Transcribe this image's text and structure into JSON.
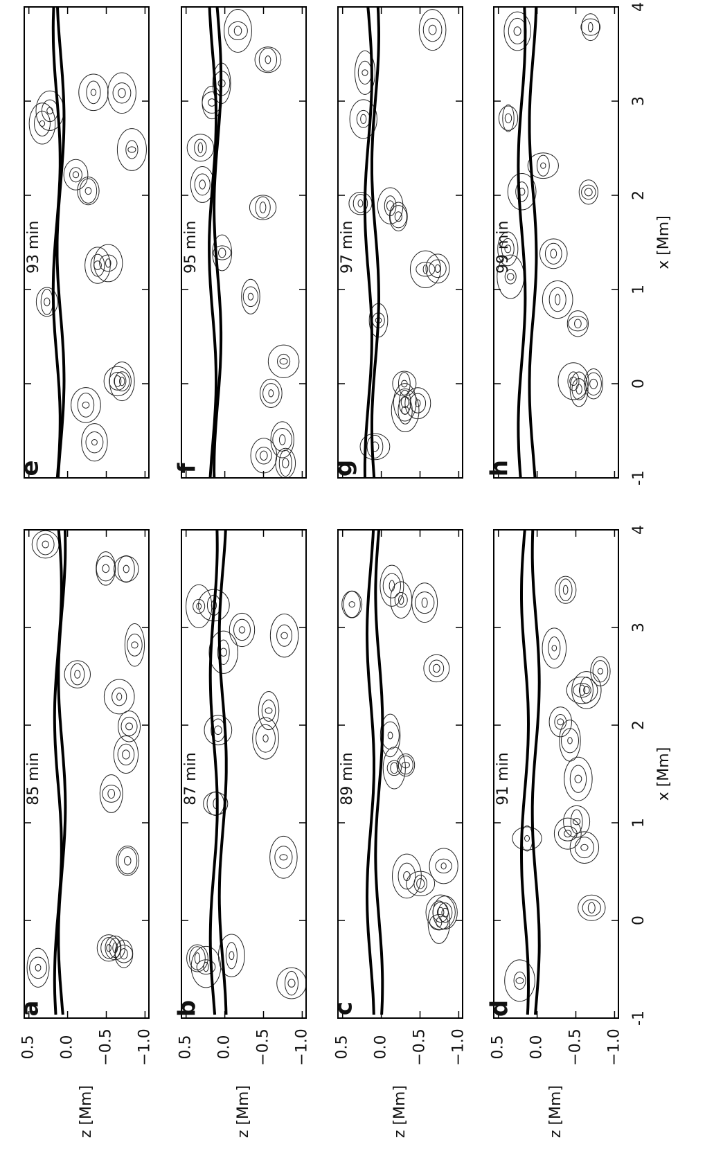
{
  "chart_data": [
    {
      "type": "contour",
      "panel": "a",
      "time": "85 min",
      "ylabel": "z [Mm]",
      "xlim": [
        -1,
        4
      ],
      "ylim": [
        -1.05,
        0.56
      ],
      "xticks": [
        -1,
        0,
        1,
        2,
        3,
        4
      ],
      "yticks": [
        0.5,
        {
          "value": 0,
          "label": "0.0"
        },
        {
          "value": -0.5,
          "label": "−0.5"
        },
        {
          "value": -1,
          "label": "−1.0"
        }
      ]
    },
    {
      "type": "contour",
      "panel": "b",
      "time": "87 min",
      "ylabel": "z [Mm]",
      "xlim": [
        -1,
        4
      ],
      "ylim": [
        -1.05,
        0.56
      ],
      "xticks": [
        -1,
        0,
        1,
        2,
        3,
        4
      ],
      "yticks": [
        0.5,
        {
          "value": 0,
          "label": "0.0"
        },
        {
          "value": -0.5,
          "label": "−0.5"
        },
        {
          "value": -1,
          "label": "−1.0"
        }
      ]
    },
    {
      "type": "contour",
      "panel": "c",
      "time": "89 min",
      "ylabel": "z [Mm]",
      "xlim": [
        -1,
        4
      ],
      "ylim": [
        -1.05,
        0.56
      ],
      "xticks": [
        -1,
        0,
        1,
        2,
        3,
        4
      ],
      "yticks": [
        0.5,
        {
          "value": 0,
          "label": "0.0"
        },
        {
          "value": -0.5,
          "label": "−0.5"
        },
        {
          "value": -1,
          "label": "−1.0"
        }
      ]
    },
    {
      "type": "contour",
      "panel": "d",
      "time": "91 min",
      "ylabel": "z [Mm]",
      "xlabel": "x [Mm]",
      "xlim": [
        -1,
        4
      ],
      "ylim": [
        -1.05,
        0.56
      ],
      "xticks": [
        -1,
        0,
        1,
        2,
        3,
        4
      ],
      "yticks": [
        0.5,
        {
          "value": 0,
          "label": "0.0"
        },
        {
          "value": -0.5,
          "label": "−0.5"
        },
        {
          "value": -1,
          "label": "−1.0"
        }
      ]
    },
    {
      "type": "contour",
      "panel": "e",
      "time": "93 min",
      "xlim": [
        -1,
        4
      ],
      "ylim": [
        -1.05,
        0.56
      ],
      "xticks": [
        -1,
        0,
        1,
        2,
        3,
        4
      ],
      "yticks": [
        0.5,
        0,
        -0.5,
        -1
      ]
    },
    {
      "type": "contour",
      "panel": "f",
      "time": "95 min",
      "xlim": [
        -1,
        4
      ],
      "ylim": [
        -1.05,
        0.56
      ],
      "xticks": [
        -1,
        0,
        1,
        2,
        3,
        4
      ],
      "yticks": [
        0.5,
        0,
        -0.5,
        -1
      ]
    },
    {
      "type": "contour",
      "panel": "g",
      "time": "97 min",
      "xlim": [
        -1,
        4
      ],
      "ylim": [
        -1.05,
        0.56
      ],
      "xticks": [
        -1,
        0,
        1,
        2,
        3,
        4
      ],
      "yticks": [
        0.5,
        0,
        -0.5,
        -1
      ]
    },
    {
      "type": "contour",
      "panel": "h",
      "time": "99 min",
      "xlabel": "x [Mm]",
      "xlim": [
        -1,
        4
      ],
      "ylim": [
        -1.05,
        0.56
      ],
      "xticks": [
        -1,
        0,
        1,
        2,
        3,
        4
      ],
      "yticks": [
        0.5,
        0,
        -0.5,
        -1
      ]
    }
  ]
}
